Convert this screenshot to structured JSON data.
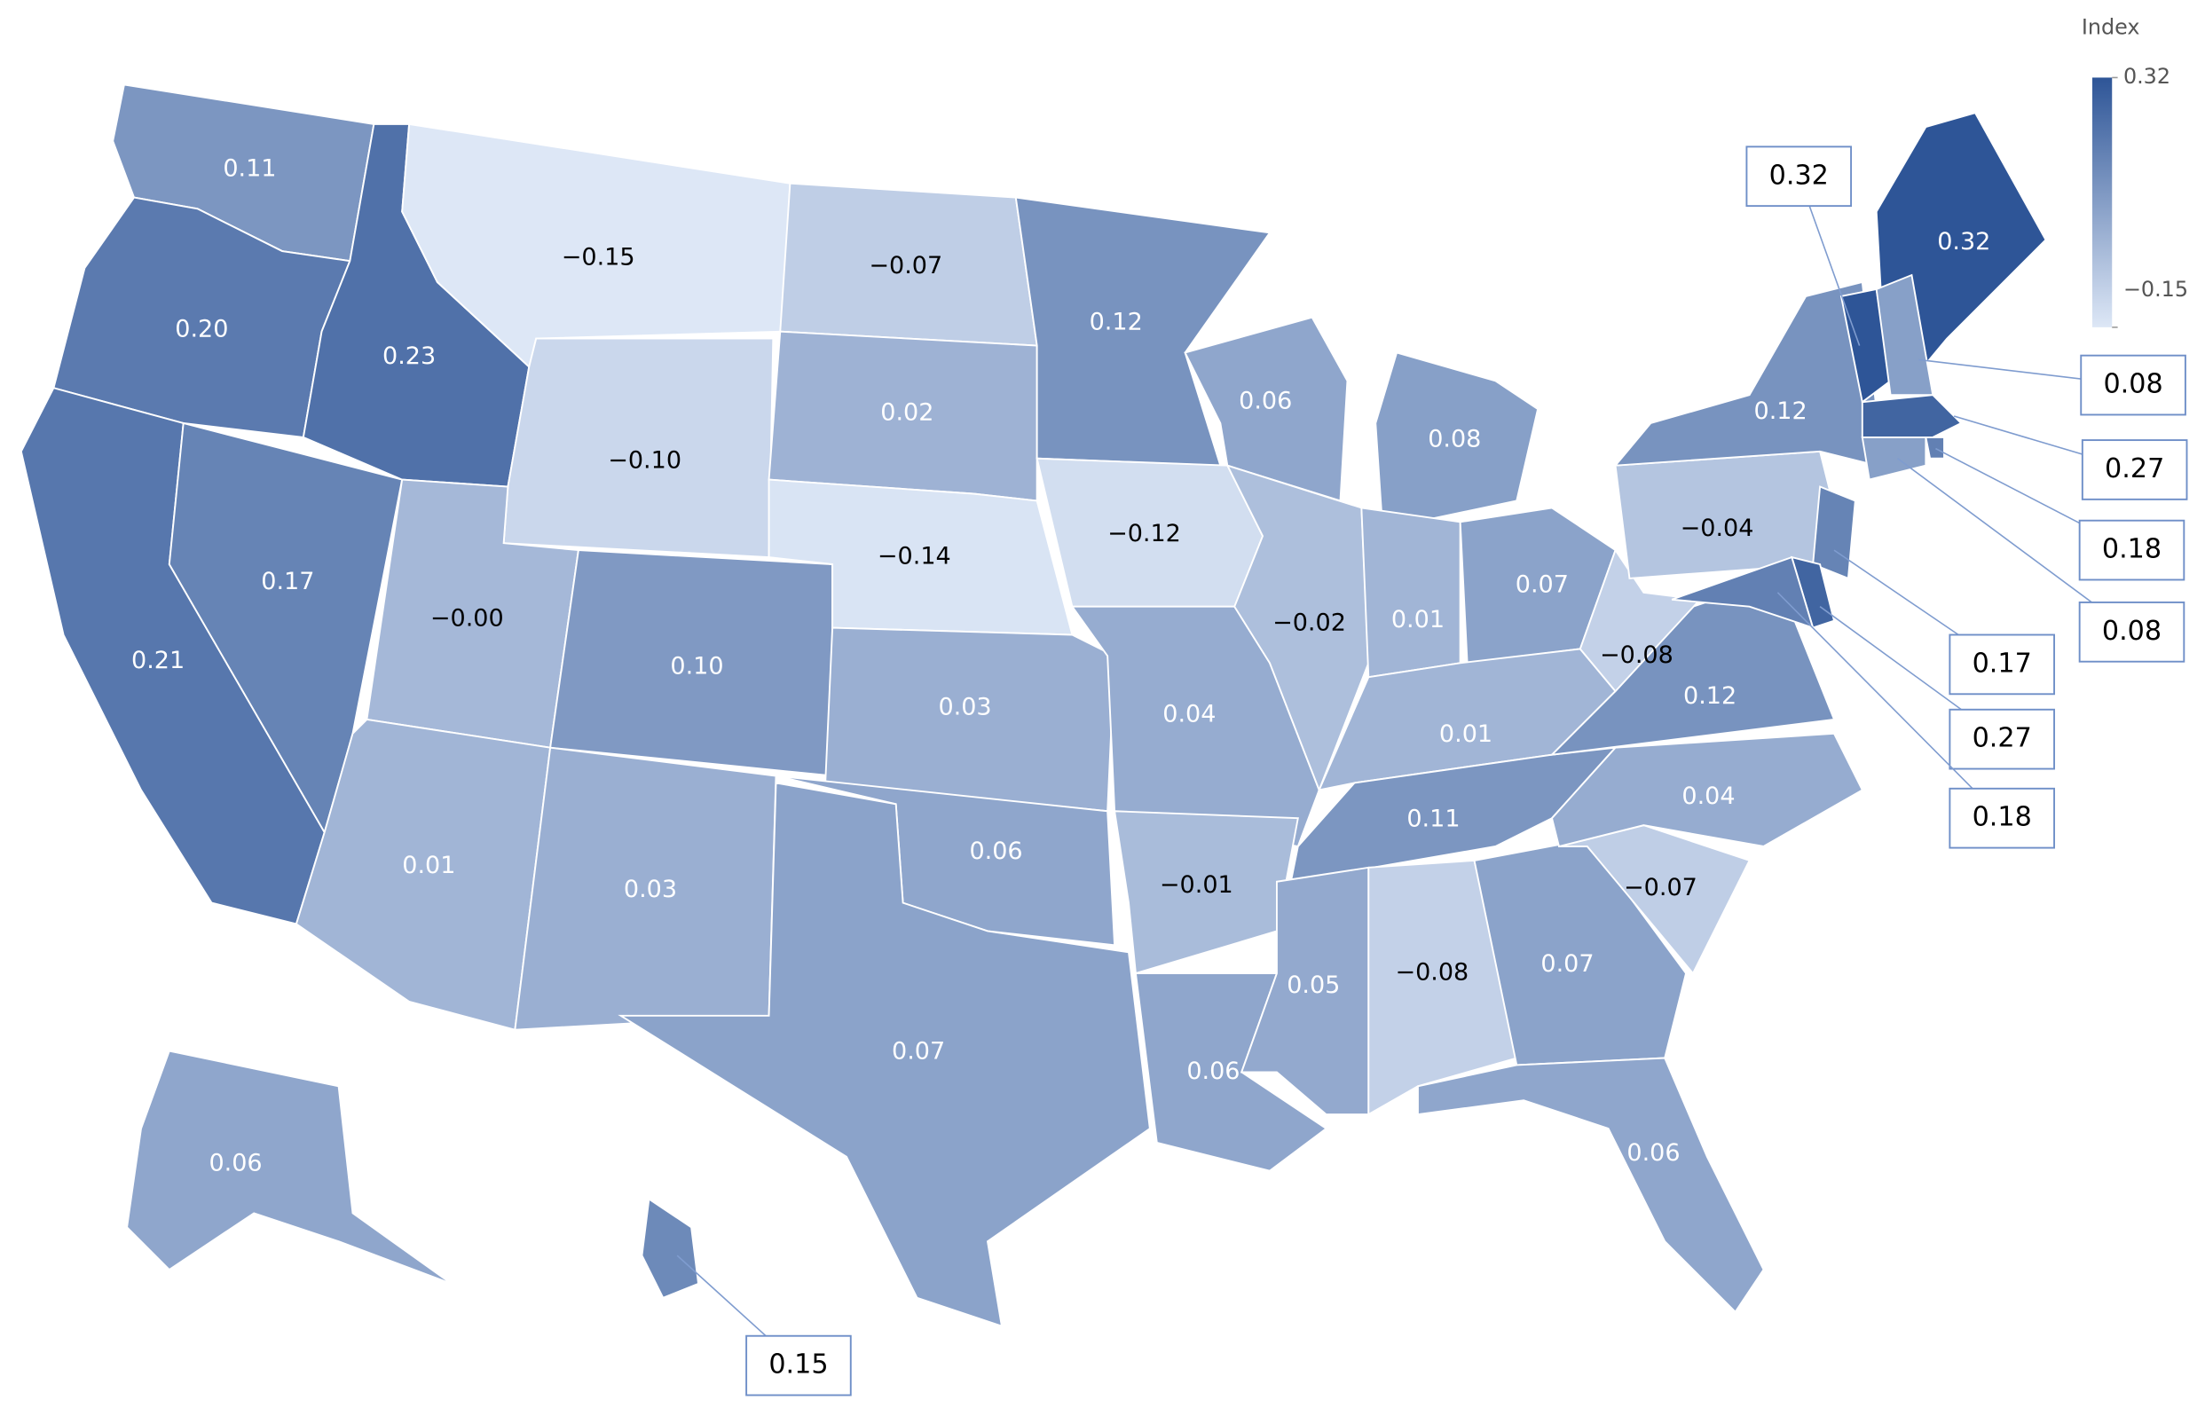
{
  "chart_data": {
    "type": "choropleth",
    "legend_title": "Index",
    "clim": [
      -0.15,
      0.32
    ],
    "cticks": [
      0.32,
      {
        "value": -0.15,
        "label": "−0.15"
      }
    ],
    "min_color": "#dde7f6",
    "max_color": "#2e5597",
    "values": [
      0.11,
      0.2,
      0.21,
      0.17,
      0.23,
      -0.15,
      -0.1,
      0,
      0.01,
      0.1,
      0.03,
      -0.07,
      0.02,
      -0.14,
      0.03,
      0.06,
      0.07,
      0.12,
      -0.12,
      0.04,
      -0.01,
      0.06,
      0.06,
      -0.02,
      0.08,
      0.01,
      0.07,
      0.01,
      0.11,
      0.05,
      -0.08,
      0.07,
      0.06,
      -0.07,
      0.04,
      0.12,
      -0.08,
      -0.04,
      0.12,
      0.32,
      0.06,
      0.32,
      0.08,
      0.27,
      0.18,
      0.08,
      0.17,
      0.27,
      0.18,
      0.15
    ],
    "value_labels": [
      "0.11",
      "0.20",
      "0.21",
      "0.17",
      "0.23",
      "−0.15",
      "−0.10",
      "−0.00",
      "0.01",
      "0.10",
      "0.03",
      "−0.07",
      "0.02",
      "−0.14",
      "0.03",
      "0.06",
      "0.07",
      "0.12",
      "−0.12",
      "0.04",
      "−0.01",
      "0.06",
      "0.06",
      "−0.02",
      "0.08",
      "0.01",
      "0.07",
      "0.01",
      "0.11",
      "0.05",
      "−0.08",
      "0.07",
      "0.06",
      "−0.07",
      "0.04",
      "0.12",
      "−0.08",
      "−0.04",
      "0.12",
      "0.32",
      "0.06",
      "0.32",
      "0.08",
      "0.27",
      "0.18",
      "0.08",
      "0.17",
      "0.27",
      "0.18",
      "0.15"
    ]
  }
}
